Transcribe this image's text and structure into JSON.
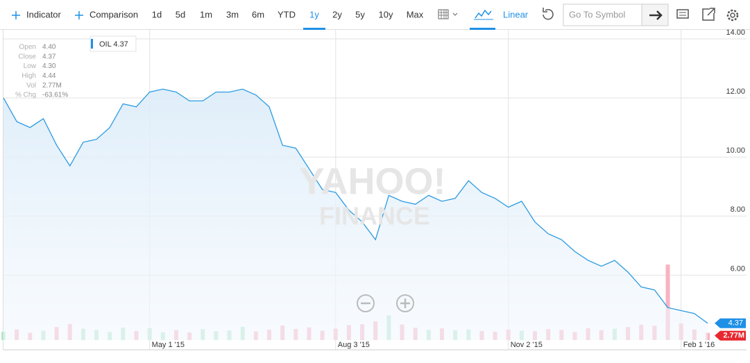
{
  "toolbar": {
    "indicator": "Indicator",
    "comparison": "Comparison",
    "ranges": [
      "1d",
      "5d",
      "1m",
      "3m",
      "6m",
      "YTD",
      "1y",
      "2y",
      "5y",
      "10y",
      "Max"
    ],
    "selected_range": 6,
    "scale": "Linear",
    "symbol_placeholder": "Go To Symbol"
  },
  "info_panel": [
    {
      "label": "Open",
      "value": "4.40"
    },
    {
      "label": "Close",
      "value": "4.37"
    },
    {
      "label": "Low",
      "value": "4.30"
    },
    {
      "label": "High",
      "value": "4.44"
    },
    {
      "label": "Vol",
      "value": "2.77M"
    },
    {
      "label": "% Chg",
      "value": "-63.61%"
    }
  ],
  "watermark": [
    "YAHOO!",
    "FINANCE"
  ],
  "chart_data": {
    "type": "line",
    "categories": [
      null,
      null,
      null,
      null,
      null,
      null,
      null,
      null,
      null,
      null,
      null,
      "May 1 '15",
      null,
      null,
      null,
      null,
      null,
      null,
      null,
      null,
      null,
      null,
      null,
      null,
      null,
      "Aug 3 '15",
      null,
      null,
      null,
      null,
      null,
      null,
      null,
      null,
      null,
      null,
      null,
      null,
      "Nov 2 '15",
      null,
      null,
      null,
      null,
      null,
      null,
      null,
      null,
      null,
      null,
      null,
      null,
      "Feb 1 '16",
      null,
      null
    ],
    "series": [
      {
        "name": "OIL",
        "color": "#2b9ae2",
        "values": [
          12.0,
          11.2,
          11.0,
          11.3,
          10.4,
          9.7,
          10.5,
          10.6,
          11.0,
          11.8,
          11.7,
          12.2,
          12.3,
          12.2,
          11.9,
          11.9,
          12.2,
          12.2,
          12.3,
          12.1,
          11.7,
          10.4,
          10.3,
          9.6,
          8.9,
          8.8,
          8.2,
          7.8,
          7.2,
          8.7,
          8.5,
          8.4,
          8.7,
          8.5,
          8.6,
          9.2,
          8.8,
          8.6,
          8.3,
          8.5,
          7.8,
          7.4,
          7.2,
          6.8,
          6.5,
          6.3,
          6.5,
          6.1,
          5.6,
          5.5,
          4.9,
          4.8,
          4.7,
          4.37
        ]
      },
      {
        "name": "Volume",
        "type": "bar",
        "axis": "y2",
        "up_color": "#b5e6cc",
        "down_color": "#f7b3c2",
        "last_label": "2.77M",
        "values": [
          3200000,
          4100000,
          2800000,
          3600000,
          5000000,
          6200000,
          4400000,
          3900000,
          3100000,
          4800000,
          3500000,
          4600000,
          3000000,
          3800000,
          2900000,
          4200000,
          3400000,
          3700000,
          5100000,
          3300000,
          4000000,
          5600000,
          4300000,
          4900000,
          3600000,
          4400000,
          5800000,
          6100000,
          7200000,
          9500000,
          6000000,
          4700000,
          3900000,
          4500000,
          3800000,
          4100000,
          3500000,
          3200000,
          4000000,
          3600000,
          3400000,
          4200000,
          3900000,
          3100000,
          4600000,
          3800000,
          4400000,
          5000000,
          5900000,
          5500000,
          29000000,
          6400000,
          4100000,
          2770000
        ]
      }
    ],
    "ylim": [
      3.8,
      14.33
    ],
    "yticks": [
      {
        "value": 6,
        "label": "6.00"
      },
      {
        "value": 8,
        "label": "8.00"
      },
      {
        "value": 10,
        "label": "10.00"
      },
      {
        "value": 12,
        "label": "12.00"
      },
      {
        "value": 14,
        "label": "14.00"
      }
    ],
    "y2lim": [
      0,
      40000000
    ],
    "grid": true
  }
}
